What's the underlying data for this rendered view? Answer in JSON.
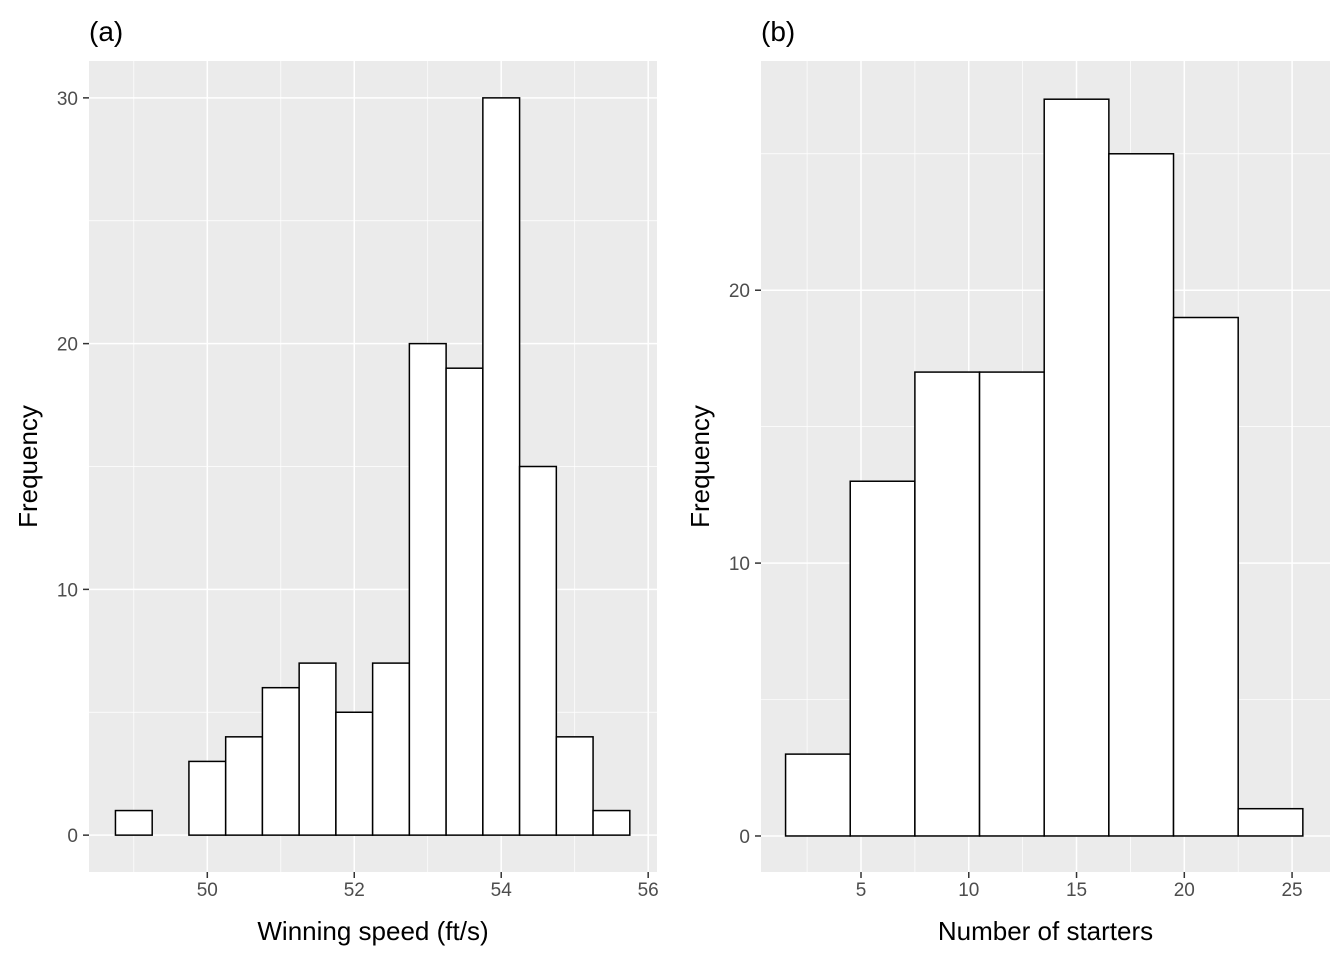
{
  "chart_data": [
    {
      "type": "bar",
      "title": "(a)",
      "xlabel": "Winning speed (ft/s)",
      "ylabel": "Frequency",
      "bin_edges": [
        48.75,
        49.25,
        49.75,
        50.25,
        50.75,
        51.25,
        51.75,
        52.25,
        52.75,
        53.25,
        53.75,
        54.25,
        54.75,
        55.25,
        55.75
      ],
      "values": [
        1,
        0,
        3,
        4,
        6,
        7,
        5,
        7,
        20,
        19,
        30,
        15,
        4,
        1
      ],
      "xlim": [
        48.39,
        56.12
      ],
      "ylim": [
        -1.5,
        31.5
      ],
      "xticks": [
        50,
        52,
        54,
        56
      ],
      "xtick_labels": [
        "50",
        "52",
        "54",
        "56"
      ],
      "xminor": [
        49,
        51,
        53,
        55
      ],
      "yticks": [
        0,
        10,
        20,
        30
      ],
      "ytick_labels": [
        "0",
        "10",
        "20",
        "30"
      ],
      "yminor": [
        5,
        15,
        25
      ],
      "grid": true,
      "colors": {
        "panel": "#ebebeb",
        "grid": "#ffffff",
        "bar_fill": "#ffffff",
        "bar_edge": "#000000"
      }
    },
    {
      "type": "bar",
      "title": "(b)",
      "xlabel": "Number of starters",
      "ylabel": "Frequency",
      "bin_edges": [
        1.5,
        4.5,
        7.5,
        10.5,
        13.5,
        16.5,
        19.5,
        22.5,
        25.5
      ],
      "values": [
        3,
        13,
        17,
        17,
        27,
        25,
        19,
        1
      ],
      "xlim": [
        0.36,
        26.76
      ],
      "ylim": [
        -1.32,
        28.4
      ],
      "xticks": [
        5,
        10,
        15,
        20,
        25
      ],
      "xtick_labels": [
        "5",
        "10",
        "15",
        "20",
        "25"
      ],
      "xminor": [
        2.5,
        7.5,
        12.5,
        17.5,
        22.5
      ],
      "yticks": [
        0,
        10,
        20
      ],
      "ytick_labels": [
        "0",
        "10",
        "20"
      ],
      "yminor": [
        5,
        15,
        25
      ],
      "grid": true,
      "colors": {
        "panel": "#ebebeb",
        "grid": "#ffffff",
        "bar_fill": "#ffffff",
        "bar_edge": "#000000"
      }
    }
  ]
}
